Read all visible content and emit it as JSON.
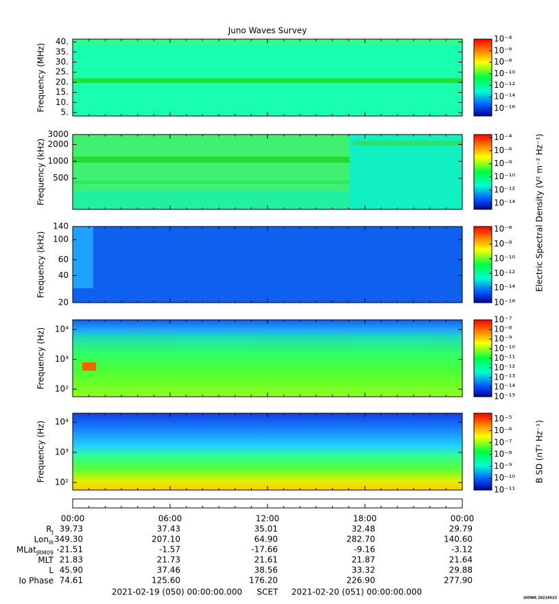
{
  "title": "Juno Waves Survey",
  "chart_data": [
    {
      "type": "spectrogram",
      "ylabel": "Frequency (MHz)",
      "yscale": "linear",
      "ylim": [
        3.3,
        41.4
      ],
      "yticks": [
        {
          "value": 5,
          "label": "5."
        },
        {
          "value": 10,
          "label": "10."
        },
        {
          "value": 15,
          "label": "15."
        },
        {
          "value": 20,
          "label": "20."
        },
        {
          "value": 25,
          "label": "25."
        },
        {
          "value": 30,
          "label": "30."
        },
        {
          "value": 35,
          "label": "35."
        },
        {
          "value": 40,
          "label": "40."
        }
      ],
      "clim": [
        5e-18,
        0.0001
      ],
      "cticks": [
        {
          "value": 0.0001,
          "label": "10⁻⁴"
        },
        {
          "value": 1e-06,
          "label": "10⁻⁶"
        },
        {
          "value": 1e-08,
          "label": "10⁻⁸"
        },
        {
          "value": 1e-10,
          "label": "10⁻¹⁰"
        },
        {
          "value": 1e-12,
          "label": "10⁻¹²"
        },
        {
          "value": 1e-14,
          "label": "10⁻¹⁴"
        },
        {
          "value": 1e-16,
          "label": "10⁻¹⁶"
        }
      ]
    },
    {
      "type": "spectrogram",
      "ylabel": "Frequency (kHz)",
      "yscale": "log",
      "ylim": [
        140,
        3000
      ],
      "yticks": [
        500,
        1000,
        2000,
        3000
      ],
      "clim": [
        1.1e-15,
        0.0003
      ],
      "cticks": [
        {
          "value": 0.0001,
          "label": "10⁻⁴"
        },
        {
          "value": 1e-06,
          "label": "10⁻⁶"
        },
        {
          "value": 1e-08,
          "label": "10⁻⁸"
        },
        {
          "value": 1e-10,
          "label": "10⁻¹⁰"
        },
        {
          "value": 1e-12,
          "label": "10⁻¹²"
        },
        {
          "value": 1e-14,
          "label": "10⁻¹⁴"
        }
      ]
    },
    {
      "type": "spectrogram",
      "ylabel": "Frequency (kHz)",
      "yscale": "log",
      "ylim": [
        20,
        140
      ],
      "yticks": [
        20,
        40,
        60,
        100,
        140
      ],
      "clim": [
        1e-16,
        2.5e-06
      ],
      "cticks": [
        {
          "value": 1e-06,
          "label": "10⁻⁶"
        },
        {
          "value": 1e-08,
          "label": "10⁻⁸"
        },
        {
          "value": 1e-10,
          "label": "10⁻¹⁰"
        },
        {
          "value": 1e-12,
          "label": "10⁻¹²"
        },
        {
          "value": 1e-14,
          "label": "10⁻¹⁴"
        },
        {
          "value": 1e-16,
          "label": "10⁻¹⁶"
        }
      ]
    },
    {
      "type": "spectrogram",
      "ylabel": "Frequency (Hz)",
      "yscale": "log",
      "ylim": [
        56,
        21000
      ],
      "yticks": [
        {
          "value": 100,
          "label": "10²"
        },
        {
          "value": 1000,
          "label": "10³"
        },
        {
          "value": 10000,
          "label": "10⁴"
        }
      ],
      "clim": [
        1e-15,
        1e-07
      ],
      "cticks": [
        {
          "value": 1e-07,
          "label": "10⁻⁷"
        },
        {
          "value": 1e-08,
          "label": "10⁻⁸"
        },
        {
          "value": 1e-09,
          "label": "10⁻⁹"
        },
        {
          "value": 1e-10,
          "label": "10⁻¹⁰"
        },
        {
          "value": 1e-11,
          "label": "10⁻¹¹"
        },
        {
          "value": 1e-12,
          "label": "10⁻¹²"
        },
        {
          "value": 1e-13,
          "label": "10⁻¹³"
        },
        {
          "value": 1e-14,
          "label": "10⁻¹⁴"
        },
        {
          "value": 1e-15,
          "label": "10⁻¹⁵"
        }
      ]
    },
    {
      "type": "spectrogram",
      "ylabel": "Frequency (Hz)",
      "yscale": "log",
      "ylim": [
        56,
        20000
      ],
      "yticks": [
        {
          "value": 100,
          "label": "10²"
        },
        {
          "value": 1000,
          "label": "10³"
        },
        {
          "value": 10000,
          "label": "10⁴"
        }
      ],
      "clim": [
        1e-11,
        3e-05
      ],
      "cticks": [
        {
          "value": 1e-05,
          "label": "10⁻⁵"
        },
        {
          "value": 1e-06,
          "label": "10⁻⁶"
        },
        {
          "value": 1e-07,
          "label": "10⁻⁷"
        },
        {
          "value": 1e-08,
          "label": "10⁻⁸"
        },
        {
          "value": 1e-09,
          "label": "10⁻⁹"
        },
        {
          "value": 1e-10,
          "label": "10⁻¹⁰"
        },
        {
          "value": 1e-11,
          "label": "10⁻¹¹"
        }
      ]
    }
  ],
  "electric_label": "Electric Spectral Density (V² m⁻² Hz⁻¹)",
  "magnetic_label": "B SD (nT² Hz⁻¹)",
  "x_ticks": [
    "00:00",
    "06:00",
    "12:00",
    "18:00",
    "00:00"
  ],
  "ephemeris": [
    {
      "label": "R",
      "sub": "J",
      "values": [
        "39.73",
        "37.43",
        "35.01",
        "32.48",
        "29.79"
      ]
    },
    {
      "label": "Lon",
      "sub": "III",
      "values": [
        "349.30",
        "207.10",
        "64.90",
        "282.70",
        "140.60"
      ]
    },
    {
      "label": "MLat",
      "sub": "JRM09",
      "values": [
        "-21.51",
        "-1.57",
        "-17.66",
        "-9.16",
        "-3.12"
      ]
    },
    {
      "label": "MLT",
      "values": [
        "21.83",
        "21.73",
        "21.61",
        "21.87",
        "21.64"
      ]
    },
    {
      "label": "L",
      "values": [
        "45.90",
        "37.46",
        "38.56",
        "33.32",
        "29.88"
      ]
    },
    {
      "label": "Io Phase",
      "values": [
        "74.61",
        "125.60",
        "176.20",
        "226.90",
        "277.90"
      ]
    }
  ],
  "footer": {
    "start": "2021-02-19 (050) 00:00:00.000",
    "scet": "SCET",
    "end": "2021-02-20 (051) 00:00:00.000",
    "stamp": "UIOWA 20210523"
  }
}
